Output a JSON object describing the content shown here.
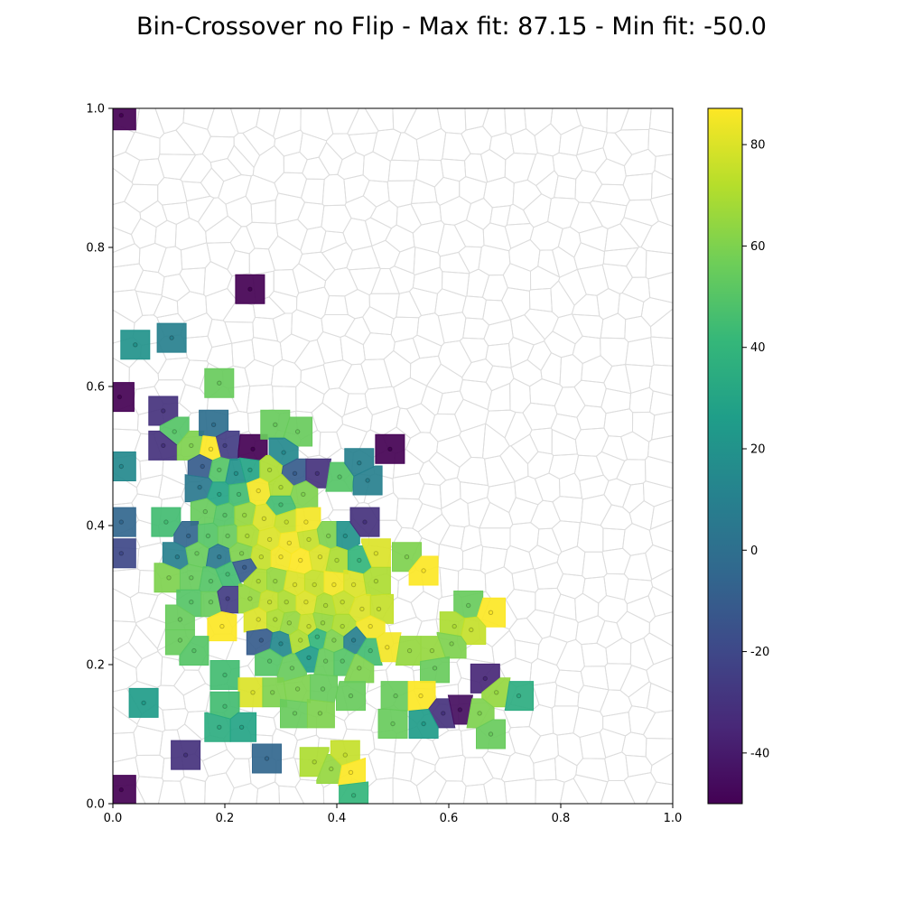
{
  "chart_data": {
    "type": "heatmap",
    "subtype": "voronoi-map-elites",
    "title": "Bin-Crossover no Flip - Max fit: 87.15 - Min fit: -50.0",
    "xlabel": "",
    "ylabel": "",
    "xlim": [
      0,
      1
    ],
    "ylim": [
      0,
      1
    ],
    "xticks": [
      "0.0",
      "0.2",
      "0.4",
      "0.6",
      "0.8",
      "1.0"
    ],
    "yticks": [
      "0.0",
      "0.2",
      "0.4",
      "0.6",
      "0.8",
      "1.0"
    ],
    "grid": false,
    "colorbar": {
      "colormap": "viridis",
      "range": [
        -50,
        87.15
      ],
      "ticks": [
        "-40",
        "-20",
        "0",
        "20",
        "40",
        "60",
        "80"
      ],
      "tick_values": [
        -40,
        -20,
        0,
        20,
        40,
        60,
        80
      ],
      "placement": "right"
    },
    "colors": {
      "empty_cell_edge": "#dddddd",
      "viridis": [
        "#440154",
        "#482878",
        "#3e4989",
        "#31688e",
        "#26828e",
        "#1f9e89",
        "#35b779",
        "#6ece58",
        "#b5de2b",
        "#fde725"
      ]
    },
    "filled_cells": [
      {
        "x": 0.015,
        "y": 0.99,
        "v": -50
      },
      {
        "x": 0.245,
        "y": 0.74,
        "v": -50
      },
      {
        "x": 0.04,
        "y": 0.66,
        "v": 20
      },
      {
        "x": 0.105,
        "y": 0.67,
        "v": 10
      },
      {
        "x": 0.012,
        "y": 0.585,
        "v": -50
      },
      {
        "x": 0.19,
        "y": 0.605,
        "v": 55
      },
      {
        "x": 0.09,
        "y": 0.565,
        "v": -30
      },
      {
        "x": 0.11,
        "y": 0.535,
        "v": 50
      },
      {
        "x": 0.09,
        "y": 0.515,
        "v": -30
      },
      {
        "x": 0.14,
        "y": 0.515,
        "v": 60
      },
      {
        "x": 0.18,
        "y": 0.545,
        "v": 0
      },
      {
        "x": 0.2,
        "y": 0.515,
        "v": -25
      },
      {
        "x": 0.175,
        "y": 0.51,
        "v": 87
      },
      {
        "x": 0.25,
        "y": 0.51,
        "v": -50
      },
      {
        "x": 0.29,
        "y": 0.545,
        "v": 55
      },
      {
        "x": 0.33,
        "y": 0.535,
        "v": 55
      },
      {
        "x": 0.305,
        "y": 0.505,
        "v": 15
      },
      {
        "x": 0.015,
        "y": 0.485,
        "v": 15
      },
      {
        "x": 0.16,
        "y": 0.485,
        "v": -10
      },
      {
        "x": 0.19,
        "y": 0.48,
        "v": 50
      },
      {
        "x": 0.22,
        "y": 0.475,
        "v": 20
      },
      {
        "x": 0.245,
        "y": 0.48,
        "v": 30
      },
      {
        "x": 0.28,
        "y": 0.48,
        "v": 70
      },
      {
        "x": 0.325,
        "y": 0.475,
        "v": -10
      },
      {
        "x": 0.365,
        "y": 0.475,
        "v": -30
      },
      {
        "x": 0.405,
        "y": 0.47,
        "v": 50
      },
      {
        "x": 0.44,
        "y": 0.49,
        "v": 10
      },
      {
        "x": 0.455,
        "y": 0.465,
        "v": 10
      },
      {
        "x": 0.495,
        "y": 0.51,
        "v": -50
      },
      {
        "x": 0.155,
        "y": 0.455,
        "v": 5
      },
      {
        "x": 0.19,
        "y": 0.445,
        "v": 30
      },
      {
        "x": 0.225,
        "y": 0.445,
        "v": 45
      },
      {
        "x": 0.26,
        "y": 0.45,
        "v": 85
      },
      {
        "x": 0.3,
        "y": 0.455,
        "v": 70
      },
      {
        "x": 0.34,
        "y": 0.445,
        "v": 60
      },
      {
        "x": 0.3,
        "y": 0.43,
        "v": 45
      },
      {
        "x": 0.165,
        "y": 0.42,
        "v": 55
      },
      {
        "x": 0.2,
        "y": 0.415,
        "v": 50
      },
      {
        "x": 0.235,
        "y": 0.415,
        "v": 65
      },
      {
        "x": 0.27,
        "y": 0.41,
        "v": 80
      },
      {
        "x": 0.31,
        "y": 0.405,
        "v": 75
      },
      {
        "x": 0.345,
        "y": 0.405,
        "v": 85
      },
      {
        "x": 0.015,
        "y": 0.405,
        "v": -5
      },
      {
        "x": 0.095,
        "y": 0.405,
        "v": 45
      },
      {
        "x": 0.135,
        "y": 0.385,
        "v": -5
      },
      {
        "x": 0.17,
        "y": 0.385,
        "v": 50
      },
      {
        "x": 0.205,
        "y": 0.385,
        "v": 55
      },
      {
        "x": 0.24,
        "y": 0.385,
        "v": 70
      },
      {
        "x": 0.28,
        "y": 0.38,
        "v": 80
      },
      {
        "x": 0.315,
        "y": 0.375,
        "v": 85
      },
      {
        "x": 0.35,
        "y": 0.38,
        "v": 75
      },
      {
        "x": 0.385,
        "y": 0.385,
        "v": 60
      },
      {
        "x": 0.415,
        "y": 0.385,
        "v": 20
      },
      {
        "x": 0.45,
        "y": 0.405,
        "v": -30
      },
      {
        "x": 0.015,
        "y": 0.36,
        "v": -20
      },
      {
        "x": 0.115,
        "y": 0.355,
        "v": 10
      },
      {
        "x": 0.15,
        "y": 0.36,
        "v": 55
      },
      {
        "x": 0.19,
        "y": 0.355,
        "v": 5
      },
      {
        "x": 0.23,
        "y": 0.36,
        "v": 60
      },
      {
        "x": 0.265,
        "y": 0.355,
        "v": 75
      },
      {
        "x": 0.3,
        "y": 0.355,
        "v": 85
      },
      {
        "x": 0.335,
        "y": 0.35,
        "v": 87
      },
      {
        "x": 0.37,
        "y": 0.355,
        "v": 80
      },
      {
        "x": 0.4,
        "y": 0.35,
        "v": 70
      },
      {
        "x": 0.44,
        "y": 0.35,
        "v": 40
      },
      {
        "x": 0.47,
        "y": 0.36,
        "v": 80
      },
      {
        "x": 0.525,
        "y": 0.355,
        "v": 60
      },
      {
        "x": 0.555,
        "y": 0.335,
        "v": 87
      },
      {
        "x": 0.1,
        "y": 0.325,
        "v": 60
      },
      {
        "x": 0.14,
        "y": 0.325,
        "v": 55
      },
      {
        "x": 0.175,
        "y": 0.32,
        "v": 50
      },
      {
        "x": 0.205,
        "y": 0.33,
        "v": 45
      },
      {
        "x": 0.235,
        "y": 0.34,
        "v": -10
      },
      {
        "x": 0.26,
        "y": 0.32,
        "v": 70
      },
      {
        "x": 0.29,
        "y": 0.32,
        "v": 65
      },
      {
        "x": 0.325,
        "y": 0.315,
        "v": 80
      },
      {
        "x": 0.36,
        "y": 0.315,
        "v": 75
      },
      {
        "x": 0.395,
        "y": 0.315,
        "v": 85
      },
      {
        "x": 0.43,
        "y": 0.315,
        "v": 80
      },
      {
        "x": 0.47,
        "y": 0.32,
        "v": 70
      },
      {
        "x": 0.14,
        "y": 0.29,
        "v": 50
      },
      {
        "x": 0.175,
        "y": 0.29,
        "v": 55
      },
      {
        "x": 0.205,
        "y": 0.295,
        "v": -25
      },
      {
        "x": 0.245,
        "y": 0.295,
        "v": 65
      },
      {
        "x": 0.28,
        "y": 0.29,
        "v": 75
      },
      {
        "x": 0.31,
        "y": 0.29,
        "v": 70
      },
      {
        "x": 0.345,
        "y": 0.29,
        "v": 80
      },
      {
        "x": 0.38,
        "y": 0.285,
        "v": 70
      },
      {
        "x": 0.41,
        "y": 0.29,
        "v": 75
      },
      {
        "x": 0.445,
        "y": 0.28,
        "v": 80
      },
      {
        "x": 0.475,
        "y": 0.28,
        "v": 75
      },
      {
        "x": 0.635,
        "y": 0.285,
        "v": 55
      },
      {
        "x": 0.675,
        "y": 0.275,
        "v": 87
      },
      {
        "x": 0.12,
        "y": 0.265,
        "v": 55
      },
      {
        "x": 0.195,
        "y": 0.255,
        "v": 87
      },
      {
        "x": 0.26,
        "y": 0.265,
        "v": 80
      },
      {
        "x": 0.29,
        "y": 0.265,
        "v": 70
      },
      {
        "x": 0.315,
        "y": 0.26,
        "v": 65
      },
      {
        "x": 0.35,
        "y": 0.255,
        "v": 75
      },
      {
        "x": 0.375,
        "y": 0.26,
        "v": 65
      },
      {
        "x": 0.41,
        "y": 0.255,
        "v": 70
      },
      {
        "x": 0.46,
        "y": 0.255,
        "v": 85
      },
      {
        "x": 0.61,
        "y": 0.255,
        "v": 70
      },
      {
        "x": 0.64,
        "y": 0.25,
        "v": 75
      },
      {
        "x": 0.12,
        "y": 0.235,
        "v": 55
      },
      {
        "x": 0.265,
        "y": 0.235,
        "v": -10
      },
      {
        "x": 0.3,
        "y": 0.23,
        "v": 15
      },
      {
        "x": 0.335,
        "y": 0.235,
        "v": 70
      },
      {
        "x": 0.365,
        "y": 0.24,
        "v": 40
      },
      {
        "x": 0.395,
        "y": 0.235,
        "v": 60
      },
      {
        "x": 0.43,
        "y": 0.235,
        "v": 10
      },
      {
        "x": 0.46,
        "y": 0.22,
        "v": 45
      },
      {
        "x": 0.49,
        "y": 0.225,
        "v": 85
      },
      {
        "x": 0.53,
        "y": 0.22,
        "v": 65
      },
      {
        "x": 0.57,
        "y": 0.22,
        "v": 65
      },
      {
        "x": 0.605,
        "y": 0.23,
        "v": 60
      },
      {
        "x": 0.145,
        "y": 0.22,
        "v": 50
      },
      {
        "x": 0.28,
        "y": 0.205,
        "v": 50
      },
      {
        "x": 0.35,
        "y": 0.21,
        "v": 25
      },
      {
        "x": 0.32,
        "y": 0.195,
        "v": 55
      },
      {
        "x": 0.38,
        "y": 0.205,
        "v": 55
      },
      {
        "x": 0.41,
        "y": 0.205,
        "v": 50
      },
      {
        "x": 0.44,
        "y": 0.195,
        "v": 60
      },
      {
        "x": 0.575,
        "y": 0.195,
        "v": 55
      },
      {
        "x": 0.665,
        "y": 0.18,
        "v": -35
      },
      {
        "x": 0.2,
        "y": 0.185,
        "v": 45
      },
      {
        "x": 0.33,
        "y": 0.165,
        "v": 60
      },
      {
        "x": 0.375,
        "y": 0.165,
        "v": 55
      },
      {
        "x": 0.25,
        "y": 0.16,
        "v": 80
      },
      {
        "x": 0.285,
        "y": 0.16,
        "v": 60
      },
      {
        "x": 0.425,
        "y": 0.155,
        "v": 55
      },
      {
        "x": 0.505,
        "y": 0.155,
        "v": 55
      },
      {
        "x": 0.55,
        "y": 0.155,
        "v": 87
      },
      {
        "x": 0.685,
        "y": 0.16,
        "v": 65
      },
      {
        "x": 0.725,
        "y": 0.155,
        "v": 35
      },
      {
        "x": 0.055,
        "y": 0.145,
        "v": 25
      },
      {
        "x": 0.2,
        "y": 0.14,
        "v": 45
      },
      {
        "x": 0.325,
        "y": 0.13,
        "v": 55
      },
      {
        "x": 0.37,
        "y": 0.13,
        "v": 60
      },
      {
        "x": 0.59,
        "y": 0.13,
        "v": -30
      },
      {
        "x": 0.62,
        "y": 0.135,
        "v": -45
      },
      {
        "x": 0.655,
        "y": 0.13,
        "v": 60
      },
      {
        "x": 0.5,
        "y": 0.115,
        "v": 55
      },
      {
        "x": 0.555,
        "y": 0.115,
        "v": 25
      },
      {
        "x": 0.19,
        "y": 0.11,
        "v": 35
      },
      {
        "x": 0.23,
        "y": 0.11,
        "v": 30
      },
      {
        "x": 0.675,
        "y": 0.1,
        "v": 55
      },
      {
        "x": 0.13,
        "y": 0.07,
        "v": -30
      },
      {
        "x": 0.275,
        "y": 0.065,
        "v": -5
      },
      {
        "x": 0.36,
        "y": 0.06,
        "v": 70
      },
      {
        "x": 0.39,
        "y": 0.05,
        "v": 65
      },
      {
        "x": 0.415,
        "y": 0.07,
        "v": 75
      },
      {
        "x": 0.425,
        "y": 0.045,
        "v": 87
      },
      {
        "x": 0.015,
        "y": 0.02,
        "v": -50
      },
      {
        "x": 0.43,
        "y": 0.012,
        "v": 40
      }
    ]
  }
}
